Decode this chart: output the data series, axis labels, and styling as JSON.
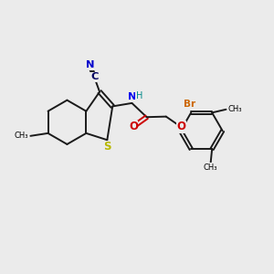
{
  "bg_color": "#ebebeb",
  "bond_color": "#1a1a1a",
  "bond_lw": 1.4,
  "S_color": "#b8b800",
  "N_color": "#0000ee",
  "O_color": "#cc0000",
  "Br_color": "#cc6600",
  "H_color": "#008888",
  "CN_C_color": "#000060",
  "CN_N_color": "#0000cc",
  "font_size": 7.0,
  "xlim": [
    0,
    10
  ],
  "ylim": [
    0,
    10
  ]
}
